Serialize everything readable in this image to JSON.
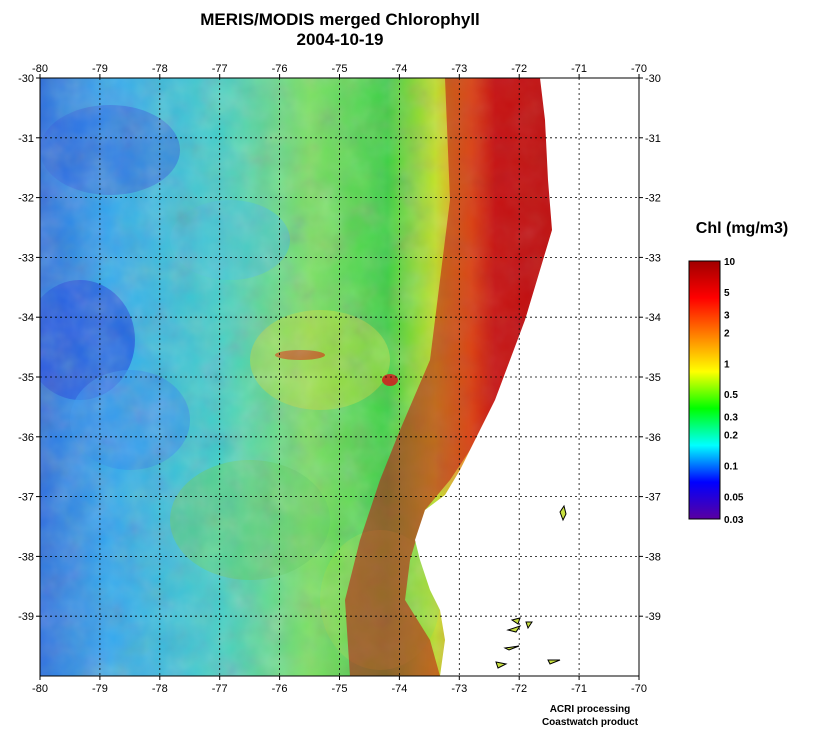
{
  "header": {
    "title": "MERIS/MODIS merged Chlorophyll",
    "date": "2004-10-19"
  },
  "map": {
    "lon_range": [
      -80,
      -70
    ],
    "lat_range": [
      -30,
      -40
    ],
    "lon_ticks": [
      "-80",
      "-79",
      "-78",
      "-77",
      "-76",
      "-75",
      "-74",
      "-73",
      "-72",
      "-71",
      "-70"
    ],
    "lat_ticks": [
      "-30",
      "-31",
      "-32",
      "-33",
      "-34",
      "-35",
      "-36",
      "-37",
      "-38",
      "-39"
    ],
    "grid": true,
    "land_color": "#ffffff",
    "ocean_base": "#22b8e8"
  },
  "colorbar": {
    "title": "Chl (mg/m3)",
    "labels": [
      "10",
      "5",
      "3",
      "2",
      "1",
      "0.5",
      "0.3",
      "0.2",
      "0.1",
      "0.05",
      "0.03"
    ],
    "colors": [
      "#a00000",
      "#ff0000",
      "#ff7f00",
      "#ffff00",
      "#00ff00",
      "#00ffff",
      "#0000ff",
      "#5a00a0"
    ]
  },
  "footer": {
    "line1": "ACRI processing",
    "line2": "Coastwatch product"
  }
}
